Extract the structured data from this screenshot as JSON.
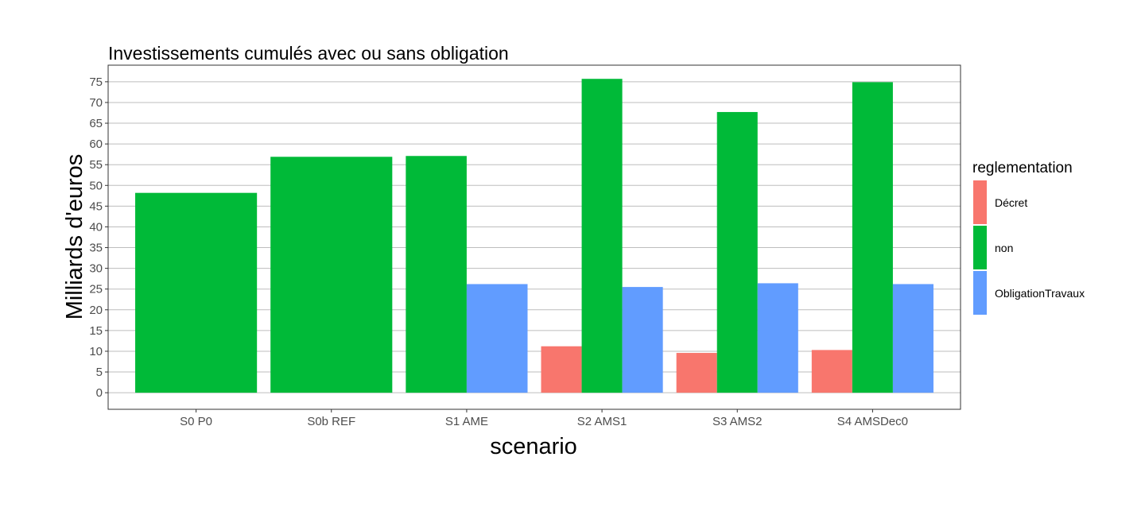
{
  "chart_data": {
    "type": "bar",
    "title": "Investissements cumulés avec ou sans obligation",
    "xlabel": "scenario",
    "ylabel": "Milliards d'euros",
    "categories": [
      "S0 P0",
      "S0b REF",
      "S1 AME",
      "S2 AMS1",
      "S3 AMS2",
      "S4 AMSDec0"
    ],
    "ylim": [
      -4,
      79
    ],
    "yticks": [
      0,
      5,
      10,
      15,
      20,
      25,
      30,
      35,
      40,
      45,
      50,
      55,
      60,
      65,
      70,
      75
    ],
    "grid": true,
    "legend": {
      "title": "reglementation",
      "position": "right"
    },
    "series": [
      {
        "name": "Décret",
        "color": "#F8766D",
        "values": [
          null,
          null,
          null,
          11.2,
          9.6,
          10.3
        ]
      },
      {
        "name": "non",
        "color": "#00BA38",
        "values": [
          48.2,
          56.9,
          57.1,
          75.7,
          67.7,
          74.9
        ]
      },
      {
        "name": "ObligationTravaux",
        "color": "#619CFF",
        "values": [
          null,
          null,
          26.2,
          25.5,
          26.4,
          26.2
        ]
      }
    ]
  }
}
